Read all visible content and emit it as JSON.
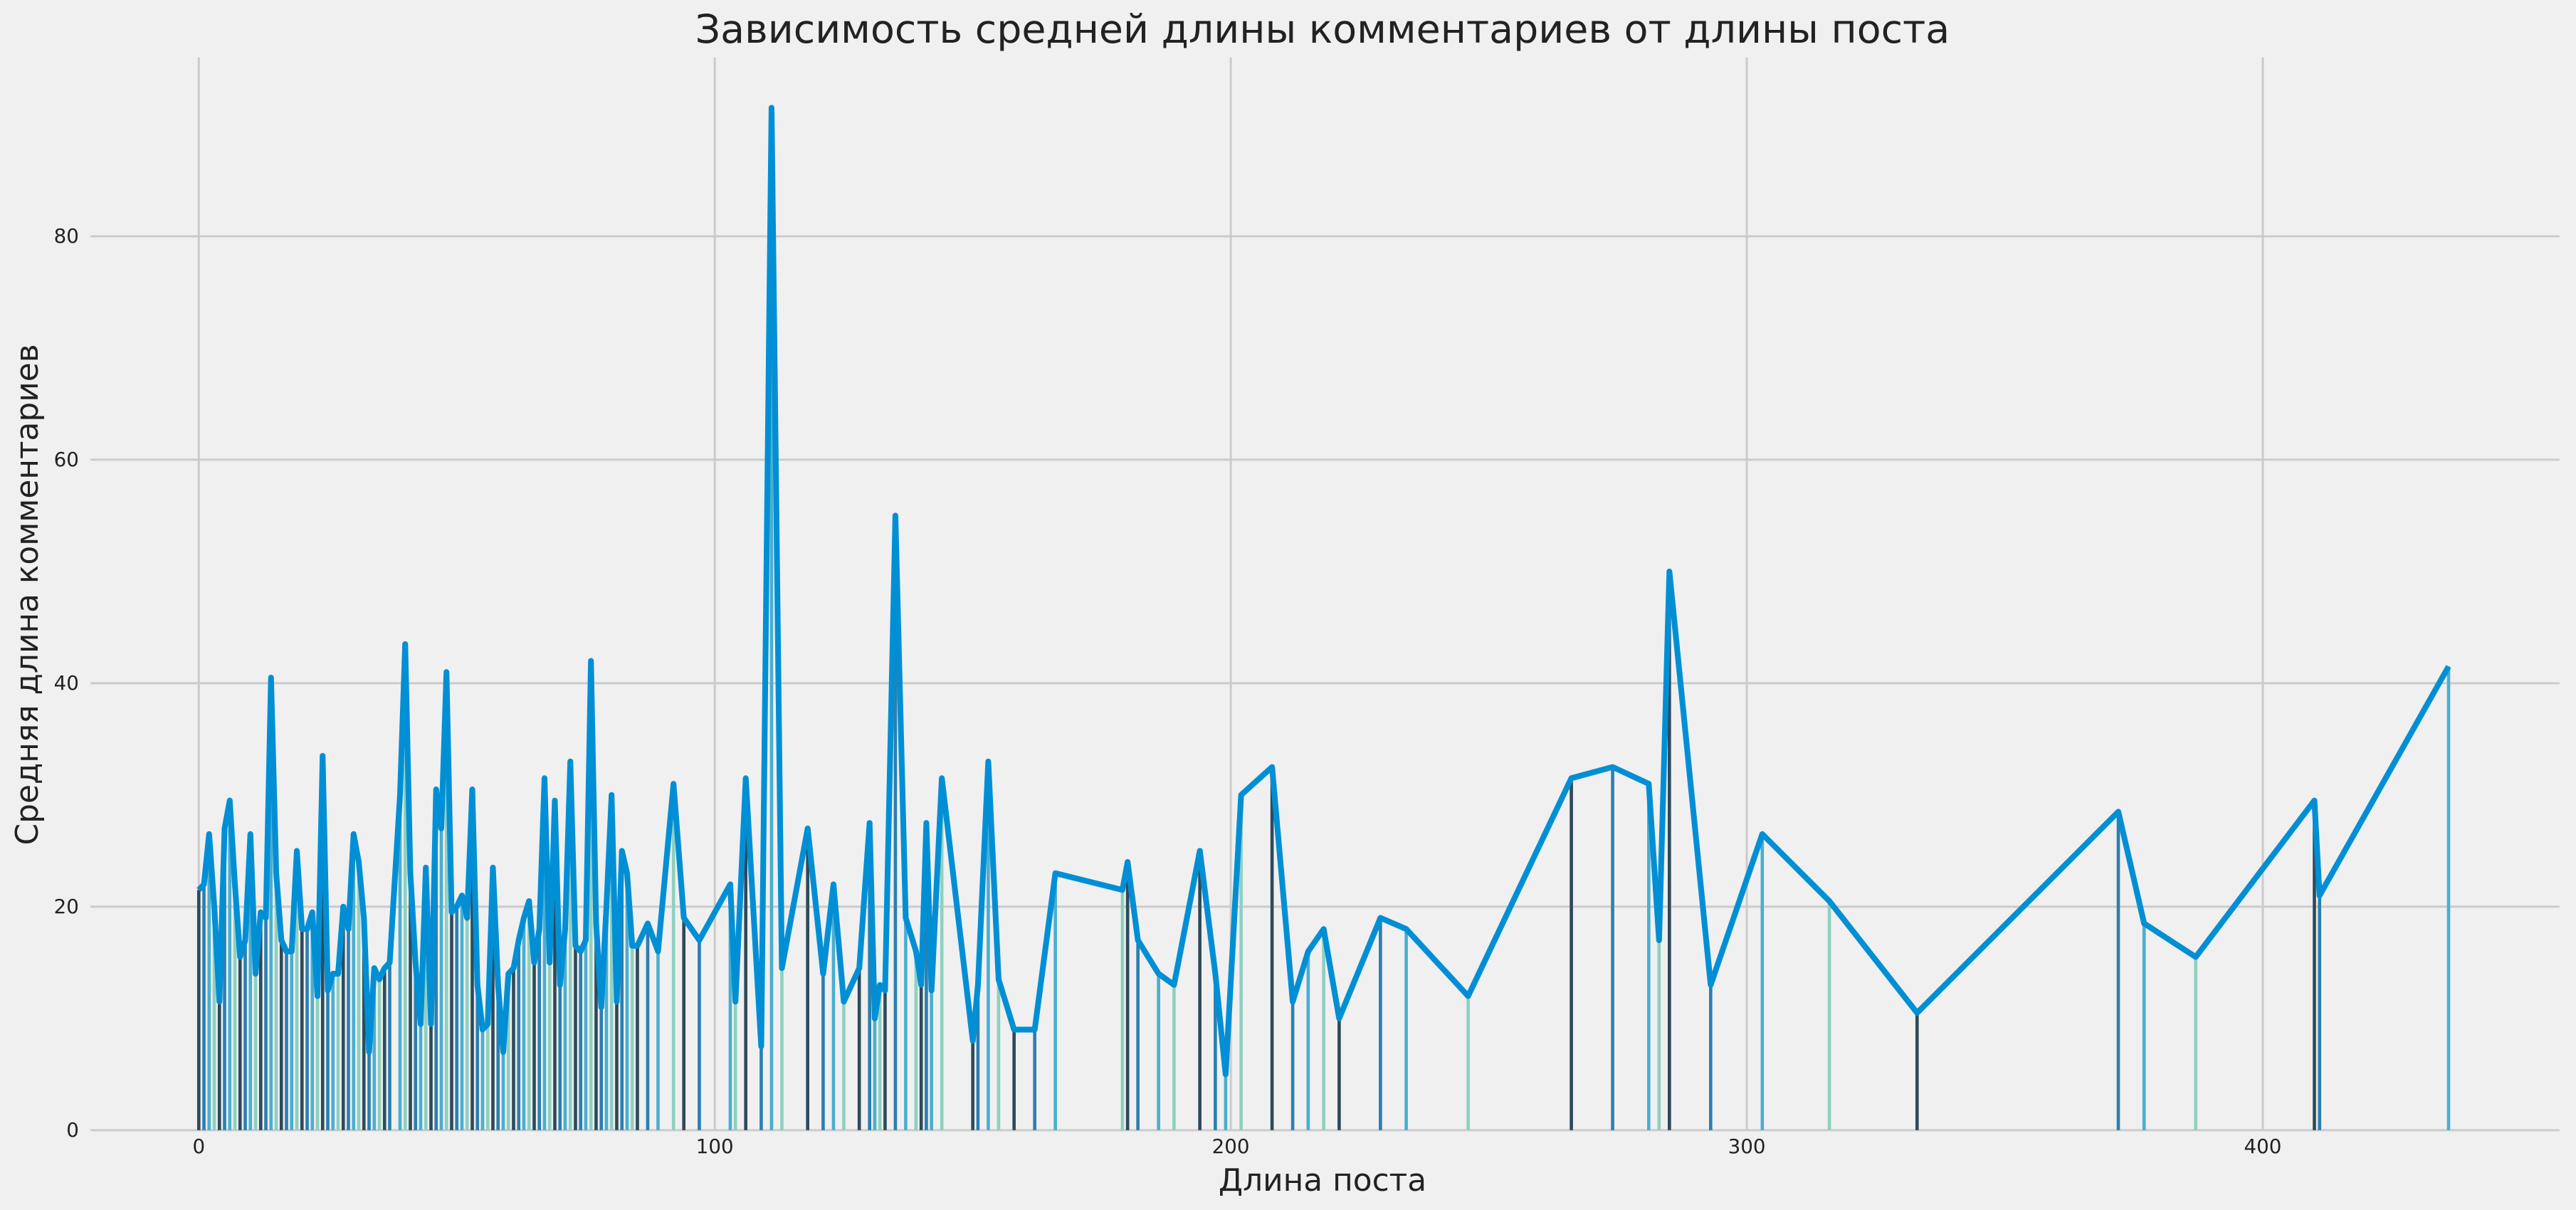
{
  "chart_data": {
    "type": "line",
    "title": "Зависимость средней длины комментариев от длины поста",
    "x_label": "Длина поста",
    "y_label": "Средняя длина комментариев",
    "x": [
      0,
      1,
      2,
      3,
      4,
      5,
      6,
      7,
      8,
      9,
      10,
      11,
      12,
      13,
      14,
      15,
      16,
      17,
      18,
      19,
      20,
      21,
      22,
      23,
      24,
      25,
      26,
      27,
      28,
      29,
      30,
      31,
      32,
      33,
      34,
      35,
      36,
      37,
      39,
      40,
      41,
      42,
      43,
      44,
      45,
      46,
      47,
      48,
      49,
      50,
      51,
      52,
      53,
      54,
      55,
      56,
      57,
      58,
      59,
      60,
      61,
      62,
      63,
      64,
      65,
      66,
      67,
      68,
      69,
      70,
      71,
      72,
      73,
      74,
      75,
      76,
      77,
      78,
      79,
      80,
      81,
      82,
      83,
      84,
      85,
      87,
      89,
      92,
      94,
      97,
      103,
      104,
      106,
      109,
      111,
      113,
      118,
      121,
      123,
      125,
      128,
      130,
      131,
      132,
      133,
      135,
      137,
      139,
      140,
      141,
      142,
      144,
      150,
      151,
      153,
      155,
      158,
      162,
      166,
      179,
      180,
      182,
      186,
      189,
      194,
      197,
      199,
      202,
      208,
      212,
      215,
      218,
      221,
      229,
      234,
      246,
      266,
      274,
      281,
      283,
      285,
      293,
      303,
      316,
      333,
      372,
      377,
      387,
      410,
      411,
      436
    ],
    "series": [
      {
        "color": "#008fd5",
        "values": [
          21.5,
          22,
          26.5,
          20,
          11.5,
          27,
          29.5,
          22,
          15.5,
          17,
          26.5,
          14,
          19.5,
          19,
          40.5,
          23,
          17,
          16,
          16,
          25,
          18,
          18,
          19.5,
          12,
          33.5,
          12.5,
          14,
          14,
          20,
          18,
          26.5,
          24,
          19,
          7,
          14.5,
          13.5,
          14.5,
          15,
          30,
          43.5,
          23,
          15,
          9.5,
          23.5,
          9.5,
          30.5,
          27,
          41,
          19.5,
          20,
          21,
          19,
          30.5,
          13,
          9,
          9.5,
          23.5,
          13,
          7,
          14,
          14.5,
          17,
          19,
          20.5,
          15,
          18,
          31.5,
          15,
          29.5,
          13,
          18,
          33,
          16.5,
          16,
          17,
          42,
          18.5,
          11,
          20,
          30,
          11.5,
          25,
          23,
          16.5,
          16.5,
          18.5,
          16,
          31,
          19,
          17,
          22,
          11.5,
          31.5,
          7.5,
          91.5,
          14.5,
          27,
          14,
          22,
          11.5,
          14.5,
          27.5,
          10,
          13,
          12.5,
          55,
          19,
          16,
          13,
          27.5,
          12.5,
          31.5,
          8,
          13,
          33,
          13.5,
          9,
          9,
          23,
          21.5,
          24,
          17,
          14,
          13,
          25,
          14,
          5,
          30,
          32.5,
          11.5,
          16,
          18,
          10,
          19,
          18,
          12,
          31.5,
          32.5,
          31,
          17,
          50,
          13,
          26.5,
          20.5,
          10.5,
          28.5,
          18.5,
          15.5,
          29.5,
          21,
          41.5
        ]
      }
    ],
    "bars": true,
    "bar_colors": [
      "#2e4a5a",
      "#2b7fb0",
      "#4aaed0",
      "#8fd0c0"
    ],
    "xlim": [
      -21,
      457.5
    ],
    "ylim": [
      0,
      96
    ],
    "xticks": [
      0,
      100,
      200,
      300,
      400
    ],
    "yticks": [
      0,
      20,
      40,
      60,
      80
    ],
    "grid": true
  }
}
